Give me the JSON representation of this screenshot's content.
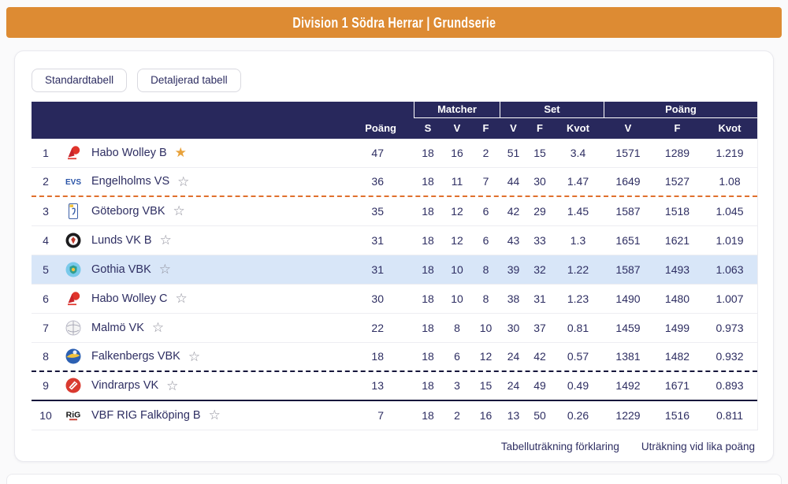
{
  "header": {
    "title": "Division 1 Södra Herrar | Grundserie"
  },
  "tabs": [
    {
      "label": "Standardtabell",
      "active": true
    },
    {
      "label": "Detaljerad tabell",
      "active": false
    }
  ],
  "table": {
    "groups": [
      {
        "label": "Matcher"
      },
      {
        "label": "Set"
      },
      {
        "label": "Poäng"
      }
    ],
    "sub_headers": [
      "Poäng",
      "S",
      "V",
      "F",
      "V",
      "F",
      "Kvot",
      "V",
      "F",
      "Kvot"
    ],
    "rows": [
      {
        "rank": "1",
        "team": "Habo Wolley B",
        "logo": "habo-wolley",
        "star": "filled",
        "highlight": false,
        "separator": "",
        "values": [
          "47",
          "18",
          "16",
          "2",
          "51",
          "15",
          "3.4",
          "1571",
          "1289",
          "1.219"
        ]
      },
      {
        "rank": "2",
        "team": "Engelholms VS",
        "logo": "engelholms",
        "star": "outline",
        "highlight": false,
        "separator": "orange-dashed",
        "values": [
          "36",
          "18",
          "11",
          "7",
          "44",
          "30",
          "1.47",
          "1649",
          "1527",
          "1.08"
        ]
      },
      {
        "rank": "3",
        "team": "Göteborg VBK",
        "logo": "goteborg",
        "star": "outline",
        "highlight": false,
        "separator": "",
        "values": [
          "35",
          "18",
          "12",
          "6",
          "42",
          "29",
          "1.45",
          "1587",
          "1518",
          "1.045"
        ]
      },
      {
        "rank": "4",
        "team": "Lunds VK B",
        "logo": "lunds",
        "star": "outline",
        "highlight": false,
        "separator": "",
        "values": [
          "31",
          "18",
          "12",
          "6",
          "43",
          "33",
          "1.3",
          "1651",
          "1621",
          "1.019"
        ]
      },
      {
        "rank": "5",
        "team": "Gothia VBK",
        "logo": "gothia",
        "star": "outline",
        "highlight": true,
        "separator": "",
        "values": [
          "31",
          "18",
          "10",
          "8",
          "39",
          "32",
          "1.22",
          "1587",
          "1493",
          "1.063"
        ]
      },
      {
        "rank": "6",
        "team": "Habo Wolley C",
        "logo": "habo-wolley",
        "star": "outline",
        "highlight": false,
        "separator": "",
        "values": [
          "30",
          "18",
          "10",
          "8",
          "38",
          "31",
          "1.23",
          "1490",
          "1480",
          "1.007"
        ]
      },
      {
        "rank": "7",
        "team": "Malmö VK",
        "logo": "malmo",
        "star": "outline",
        "highlight": false,
        "separator": "",
        "values": [
          "22",
          "18",
          "8",
          "10",
          "30",
          "37",
          "0.81",
          "1459",
          "1499",
          "0.973"
        ]
      },
      {
        "rank": "8",
        "team": "Falkenbergs VBK",
        "logo": "falkenbergs",
        "star": "outline",
        "highlight": false,
        "separator": "dark-dashed",
        "values": [
          "18",
          "18",
          "6",
          "12",
          "24",
          "42",
          "0.57",
          "1381",
          "1482",
          "0.932"
        ]
      },
      {
        "rank": "9",
        "team": "Vindrarps VK",
        "logo": "vindrarps",
        "star": "outline",
        "highlight": false,
        "separator": "dark-solid",
        "values": [
          "13",
          "18",
          "3",
          "15",
          "24",
          "49",
          "0.49",
          "1492",
          "1671",
          "0.893"
        ]
      },
      {
        "rank": "10",
        "team": "VBF RIG Falköping B",
        "logo": "rig-falkoping",
        "star": "outline",
        "highlight": false,
        "separator": "",
        "values": [
          "7",
          "18",
          "2",
          "16",
          "13",
          "50",
          "0.26",
          "1229",
          "1516",
          "0.811"
        ]
      }
    ]
  },
  "footer": {
    "links": [
      {
        "label": "Tabelluträkning förklaring"
      },
      {
        "label": "Uträkning vid lika poäng"
      }
    ]
  },
  "colors": {
    "accent_orange": "#DD8B33",
    "header_navy": "#28285C",
    "text_navy": "#2E2E62",
    "highlight_row": "#D8E6F8",
    "separator_orange": "#E0702D",
    "separator_dark": "#16163B",
    "star_gold": "#E8A23B"
  }
}
